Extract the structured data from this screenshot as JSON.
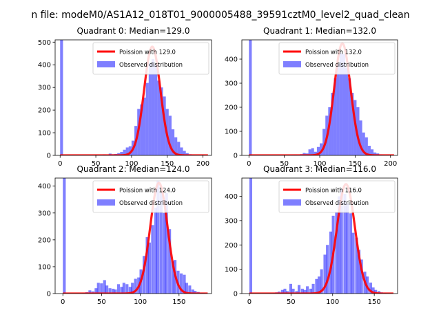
{
  "figure": {
    "suptitle": "n file: modeM0/AS1A12_018T01_9000005488_39591cztM0_level2_quad_clean"
  },
  "chart_data": [
    {
      "type": "bar",
      "title": "Quadrant 0: Median=129.0",
      "xlabel": "",
      "ylabel": "",
      "xlim": [
        -7,
        212
      ],
      "ylim": [
        0,
        510
      ],
      "xticks": [
        0,
        50,
        100,
        150,
        200
      ],
      "yticks": [
        0,
        100,
        200,
        300,
        400,
        500
      ],
      "legend": [
        "Poission with 129.0",
        "Observed distribution"
      ],
      "legend_position": "upper right",
      "colors": {
        "hist": "#0000ff",
        "curve": "#ff0000"
      },
      "poisson_mean": 129.0,
      "poisson_peak": 480,
      "bin_width": 4.0,
      "bins": [
        {
          "x0": 0,
          "count": 510
        },
        {
          "x0": 60,
          "count": 4
        },
        {
          "x0": 64,
          "count": 2
        },
        {
          "x0": 68,
          "count": 8
        },
        {
          "x0": 72,
          "count": 5
        },
        {
          "x0": 76,
          "count": 6
        },
        {
          "x0": 80,
          "count": 10
        },
        {
          "x0": 84,
          "count": 15
        },
        {
          "x0": 88,
          "count": 25
        },
        {
          "x0": 92,
          "count": 35
        },
        {
          "x0": 96,
          "count": 40
        },
        {
          "x0": 100,
          "count": 65
        },
        {
          "x0": 104,
          "count": 130
        },
        {
          "x0": 108,
          "count": 205
        },
        {
          "x0": 112,
          "count": 225
        },
        {
          "x0": 116,
          "count": 255
        },
        {
          "x0": 120,
          "count": 320
        },
        {
          "x0": 124,
          "count": 410
        },
        {
          "x0": 128,
          "count": 425
        },
        {
          "x0": 132,
          "count": 400
        },
        {
          "x0": 136,
          "count": 330
        },
        {
          "x0": 140,
          "count": 300
        },
        {
          "x0": 144,
          "count": 260
        },
        {
          "x0": 148,
          "count": 205
        },
        {
          "x0": 152,
          "count": 175
        },
        {
          "x0": 156,
          "count": 115
        },
        {
          "x0": 160,
          "count": 80
        },
        {
          "x0": 164,
          "count": 60
        },
        {
          "x0": 168,
          "count": 35
        },
        {
          "x0": 172,
          "count": 20
        },
        {
          "x0": 176,
          "count": 10
        },
        {
          "x0": 180,
          "count": 5
        },
        {
          "x0": 184,
          "count": 3
        },
        {
          "x0": 188,
          "count": 2
        },
        {
          "x0": 192,
          "count": 1
        },
        {
          "x0": 196,
          "count": 1
        }
      ]
    },
    {
      "type": "bar",
      "title": "Quadrant 1: Median=132.0",
      "xlabel": "",
      "ylabel": "",
      "xlim": [
        -10,
        210
      ],
      "ylim": [
        0,
        480
      ],
      "xticks": [
        0,
        50,
        100,
        150,
        200
      ],
      "yticks": [
        0,
        100,
        200,
        300,
        400
      ],
      "legend": [
        "Poission with 132.0",
        "Observed distribution"
      ],
      "legend_position": "upper right",
      "colors": {
        "hist": "#0000ff",
        "curve": "#ff0000"
      },
      "poisson_mean": 132.0,
      "poisson_peak": 465,
      "bin_width": 4.0,
      "bins": [
        {
          "x0": 0,
          "count": 480
        },
        {
          "x0": 60,
          "count": 2
        },
        {
          "x0": 64,
          "count": 3
        },
        {
          "x0": 68,
          "count": 2
        },
        {
          "x0": 72,
          "count": 5
        },
        {
          "x0": 76,
          "count": 10
        },
        {
          "x0": 80,
          "count": 8
        },
        {
          "x0": 84,
          "count": 25
        },
        {
          "x0": 88,
          "count": 30
        },
        {
          "x0": 92,
          "count": 15
        },
        {
          "x0": 96,
          "count": 35
        },
        {
          "x0": 100,
          "count": 50
        },
        {
          "x0": 104,
          "count": 110
        },
        {
          "x0": 108,
          "count": 165
        },
        {
          "x0": 112,
          "count": 200
        },
        {
          "x0": 116,
          "count": 260
        },
        {
          "x0": 120,
          "count": 320
        },
        {
          "x0": 124,
          "count": 380
        },
        {
          "x0": 128,
          "count": 425
        },
        {
          "x0": 132,
          "count": 420
        },
        {
          "x0": 136,
          "count": 365
        },
        {
          "x0": 140,
          "count": 320
        },
        {
          "x0": 144,
          "count": 260
        },
        {
          "x0": 148,
          "count": 230
        },
        {
          "x0": 152,
          "count": 200
        },
        {
          "x0": 156,
          "count": 145
        },
        {
          "x0": 160,
          "count": 95
        },
        {
          "x0": 164,
          "count": 75
        },
        {
          "x0": 168,
          "count": 40
        },
        {
          "x0": 172,
          "count": 25
        },
        {
          "x0": 176,
          "count": 12
        },
        {
          "x0": 180,
          "count": 8
        },
        {
          "x0": 184,
          "count": 4
        },
        {
          "x0": 188,
          "count": 2
        },
        {
          "x0": 192,
          "count": 1
        },
        {
          "x0": 196,
          "count": 1
        }
      ]
    },
    {
      "type": "bar",
      "title": "Quadrant 2: Median=124.0",
      "xlabel": "",
      "ylabel": "",
      "xlim": [
        -10,
        192
      ],
      "ylim": [
        0,
        430
      ],
      "xticks": [
        0,
        50,
        100,
        150
      ],
      "yticks": [
        0,
        100,
        200,
        300,
        400
      ],
      "legend": [
        "Poission with 124.0",
        "Observed distribution"
      ],
      "legend_position": "upper right",
      "colors": {
        "hist": "#0000ff",
        "curve": "#ff0000"
      },
      "poisson_mean": 124.0,
      "poisson_peak": 412,
      "bin_width": 3.7,
      "bins": [
        {
          "x0": 0,
          "count": 430
        },
        {
          "x0": 25,
          "count": 2
        },
        {
          "x0": 29,
          "count": 5
        },
        {
          "x0": 33,
          "count": 12
        },
        {
          "x0": 37,
          "count": 8
        },
        {
          "x0": 41,
          "count": 20
        },
        {
          "x0": 44,
          "count": 40
        },
        {
          "x0": 48,
          "count": 38
        },
        {
          "x0": 52,
          "count": 50
        },
        {
          "x0": 55,
          "count": 30
        },
        {
          "x0": 59,
          "count": 20
        },
        {
          "x0": 63,
          "count": 18
        },
        {
          "x0": 66,
          "count": 15
        },
        {
          "x0": 70,
          "count": 35
        },
        {
          "x0": 74,
          "count": 25
        },
        {
          "x0": 77,
          "count": 40
        },
        {
          "x0": 81,
          "count": 35
        },
        {
          "x0": 85,
          "count": 25
        },
        {
          "x0": 88,
          "count": 40
        },
        {
          "x0": 92,
          "count": 55
        },
        {
          "x0": 96,
          "count": 60
        },
        {
          "x0": 99,
          "count": 90
        },
        {
          "x0": 103,
          "count": 140
        },
        {
          "x0": 107,
          "count": 210
        },
        {
          "x0": 110,
          "count": 190
        },
        {
          "x0": 114,
          "count": 255
        },
        {
          "x0": 118,
          "count": 320
        },
        {
          "x0": 121,
          "count": 420
        },
        {
          "x0": 125,
          "count": 375
        },
        {
          "x0": 129,
          "count": 300
        },
        {
          "x0": 132,
          "count": 375
        },
        {
          "x0": 136,
          "count": 240
        },
        {
          "x0": 140,
          "count": 120
        },
        {
          "x0": 143,
          "count": 125
        },
        {
          "x0": 147,
          "count": 85
        },
        {
          "x0": 151,
          "count": 75
        },
        {
          "x0": 155,
          "count": 70
        },
        {
          "x0": 158,
          "count": 40
        },
        {
          "x0": 162,
          "count": 30
        },
        {
          "x0": 166,
          "count": 15
        },
        {
          "x0": 169,
          "count": 10
        },
        {
          "x0": 173,
          "count": 6
        },
        {
          "x0": 177,
          "count": 3
        },
        {
          "x0": 180,
          "count": 2
        }
      ]
    },
    {
      "type": "bar",
      "title": "Quadrant 3: Median=116.0",
      "xlabel": "",
      "ylabel": "",
      "xlim": [
        -9,
        178
      ],
      "ylim": [
        0,
        475
      ],
      "xticks": [
        0,
        50,
        100,
        150
      ],
      "yticks": [
        0,
        100,
        200,
        300,
        400
      ],
      "legend": [
        "Poission with 116.0",
        "Observed distribution"
      ],
      "legend_position": "upper right",
      "colors": {
        "hist": "#0000ff",
        "curve": "#ff0000"
      },
      "poisson_mean": 116.0,
      "poisson_peak": 450,
      "bin_width": 3.4,
      "bins": [
        {
          "x0": 0,
          "count": 475
        },
        {
          "x0": 24,
          "count": 2
        },
        {
          "x0": 28,
          "count": 3
        },
        {
          "x0": 31,
          "count": 5
        },
        {
          "x0": 34,
          "count": 8
        },
        {
          "x0": 38,
          "count": 15
        },
        {
          "x0": 41,
          "count": 20
        },
        {
          "x0": 44,
          "count": 10
        },
        {
          "x0": 48,
          "count": 40
        },
        {
          "x0": 51,
          "count": 20
        },
        {
          "x0": 55,
          "count": 10
        },
        {
          "x0": 58,
          "count": 35
        },
        {
          "x0": 62,
          "count": 20
        },
        {
          "x0": 65,
          "count": 15
        },
        {
          "x0": 68,
          "count": 30
        },
        {
          "x0": 72,
          "count": 20
        },
        {
          "x0": 75,
          "count": 40
        },
        {
          "x0": 79,
          "count": 60
        },
        {
          "x0": 82,
          "count": 70
        },
        {
          "x0": 85,
          "count": 100
        },
        {
          "x0": 89,
          "count": 160
        },
        {
          "x0": 92,
          "count": 200
        },
        {
          "x0": 96,
          "count": 255
        },
        {
          "x0": 99,
          "count": 320
        },
        {
          "x0": 103,
          "count": 335
        },
        {
          "x0": 106,
          "count": 400
        },
        {
          "x0": 109,
          "count": 430
        },
        {
          "x0": 113,
          "count": 410
        },
        {
          "x0": 116,
          "count": 370
        },
        {
          "x0": 120,
          "count": 330
        },
        {
          "x0": 123,
          "count": 250
        },
        {
          "x0": 127,
          "count": 230
        },
        {
          "x0": 130,
          "count": 180
        },
        {
          "x0": 133,
          "count": 140
        },
        {
          "x0": 137,
          "count": 90
        },
        {
          "x0": 140,
          "count": 70
        },
        {
          "x0": 144,
          "count": 45
        },
        {
          "x0": 147,
          "count": 25
        },
        {
          "x0": 150,
          "count": 15
        },
        {
          "x0": 154,
          "count": 10
        },
        {
          "x0": 157,
          "count": 5
        },
        {
          "x0": 161,
          "count": 3
        }
      ]
    }
  ]
}
